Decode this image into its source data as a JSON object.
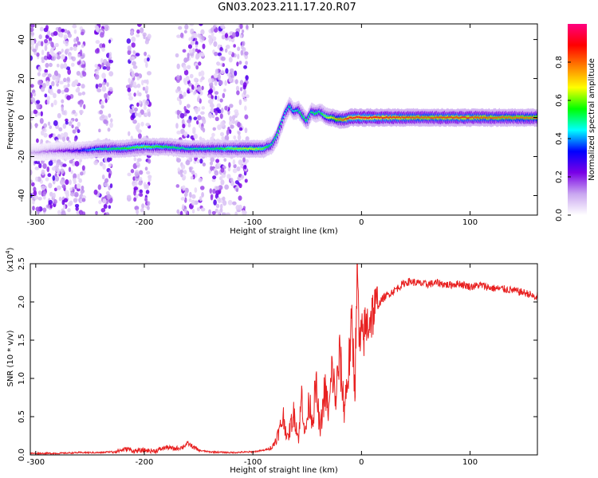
{
  "title": "GN03.2023.211.17.20.R07",
  "colors": {
    "snr_line": "#e82020",
    "axes": "#000000"
  },
  "chart_data": [
    {
      "type": "heatmap",
      "title": "GN03.2023.211.17.20.R07",
      "xlabel": "Height of straight line (km)",
      "ylabel": "Frequency (Hz)",
      "xlim": [
        -305,
        162
      ],
      "ylim": [
        -50,
        48
      ],
      "x_ticks": [
        -300,
        -200,
        -100,
        0,
        100
      ],
      "x_tick_labels": [
        "-300",
        "-200",
        "-100",
        "0",
        "100"
      ],
      "y_ticks": [
        -40,
        -20,
        0,
        20,
        40
      ],
      "y_tick_labels": [
        "-40",
        "-20",
        "0",
        "20",
        "40"
      ],
      "colorbar": {
        "label": "Normalized spectral amplitude",
        "range": [
          0,
          1
        ],
        "ticks": [
          0.0,
          0.2,
          0.4,
          0.6,
          0.8
        ],
        "tick_labels": [
          "0.0",
          "0.2",
          "0.4",
          "0.6",
          "0.8"
        ],
        "colormap": [
          "#ffffff",
          "#c9a6f0",
          "#7a00e6",
          "#0000ff",
          "#00ffff",
          "#00ff00",
          "#ffff00",
          "#ff8000",
          "#ff0000",
          "#ff0080"
        ]
      },
      "signal_track": {
        "x": [
          -305,
          -280,
          -260,
          -240,
          -220,
          -200,
          -180,
          -160,
          -140,
          -120,
          -100,
          -90,
          -82,
          -78,
          -74,
          -70,
          -66,
          -62,
          -58,
          -54,
          -50,
          -46,
          -42,
          -38,
          -34,
          -30,
          -26,
          -22,
          -18,
          -14,
          -10,
          -6,
          -2,
          0,
          20,
          40,
          60,
          80,
          100,
          120,
          140,
          162
        ],
        "frequency": [
          -18,
          -17,
          -17,
          -16,
          -16,
          -15,
          -15,
          -16,
          -16,
          -16,
          -16,
          -16,
          -14,
          -10,
          -4,
          2,
          6,
          3,
          4,
          1,
          -2,
          3,
          2,
          3,
          1,
          0,
          0,
          -1,
          -1,
          -1,
          0,
          0,
          0,
          0,
          0,
          0,
          0,
          0,
          0,
          0,
          0,
          0
        ],
        "amplitude": [
          0.1,
          0.2,
          0.3,
          0.5,
          0.55,
          0.6,
          0.55,
          0.5,
          0.5,
          0.6,
          0.65,
          0.6,
          0.5,
          0.55,
          0.5,
          0.45,
          0.5,
          0.45,
          0.5,
          0.55,
          0.55,
          0.5,
          0.55,
          0.5,
          0.6,
          0.65,
          0.7,
          0.75,
          0.8,
          0.85,
          0.9,
          0.9,
          0.9,
          0.9,
          0.88,
          0.85,
          0.82,
          0.85,
          0.85,
          0.82,
          0.8,
          0.8
        ]
      },
      "noise_bands_km": [
        [
          -305,
          -255
        ],
        [
          -245,
          -230
        ],
        [
          -215,
          -195
        ],
        [
          -170,
          -145
        ],
        [
          -140,
          -105
        ]
      ],
      "grid": false
    },
    {
      "type": "line",
      "xlabel": "Height of straight line (km)",
      "ylabel": "SNR (10 * v/v)",
      "y_multiplier_label": "(x10",
      "y_multiplier_exponent": "4",
      "y_multiplier_close": ")",
      "xlim": [
        -305,
        162
      ],
      "ylim": [
        0,
        2.5
      ],
      "x_ticks": [
        -300,
        -200,
        -100,
        0,
        100
      ],
      "x_tick_labels": [
        "-300",
        "-200",
        "-100",
        "0",
        "100"
      ],
      "y_ticks": [
        0,
        0.5,
        1.0,
        1.5,
        2.0,
        2.5
      ],
      "y_tick_labels": [
        "0.0",
        "0.5",
        "1.0",
        "1.5",
        "2.0",
        "2.5"
      ],
      "grid": false,
      "series": [
        {
          "color": "#e82020",
          "x": [
            -305,
            -280,
            -260,
            -240,
            -225,
            -215,
            -210,
            -200,
            -190,
            -180,
            -172,
            -165,
            -160,
            -150,
            -140,
            -120,
            -100,
            -90,
            -82,
            -76,
            -72,
            -68,
            -65,
            -62,
            -58,
            -55,
            -52,
            -48,
            -45,
            -42,
            -38,
            -34,
            -30,
            -27,
            -24,
            -20,
            -16,
            -12,
            -9,
            -6,
            -4,
            -2,
            0,
            5,
            10,
            15,
            20,
            25,
            30,
            35,
            40,
            45,
            50,
            60,
            70,
            80,
            90,
            100,
            110,
            120,
            130,
            140,
            150,
            155,
            160,
            162
          ],
          "y": [
            0.02,
            0.02,
            0.03,
            0.03,
            0.05,
            0.08,
            0.05,
            0.06,
            0.05,
            0.1,
            0.08,
            0.1,
            0.15,
            0.06,
            0.04,
            0.03,
            0.04,
            0.06,
            0.1,
            0.3,
            0.5,
            0.2,
            0.4,
            0.55,
            0.2,
            0.8,
            0.25,
            0.7,
            0.45,
            0.9,
            0.3,
            0.85,
            0.55,
            1.15,
            0.7,
            1.3,
            0.6,
            1.1,
            1.7,
            0.9,
            2.5,
            1.4,
            1.5,
            1.7,
            1.85,
            1.95,
            2.05,
            2.1,
            2.15,
            2.2,
            2.25,
            2.27,
            2.25,
            2.23,
            2.25,
            2.22,
            2.24,
            2.2,
            2.22,
            2.18,
            2.17,
            2.15,
            2.12,
            2.1,
            2.05,
            2.08
          ]
        }
      ]
    }
  ]
}
